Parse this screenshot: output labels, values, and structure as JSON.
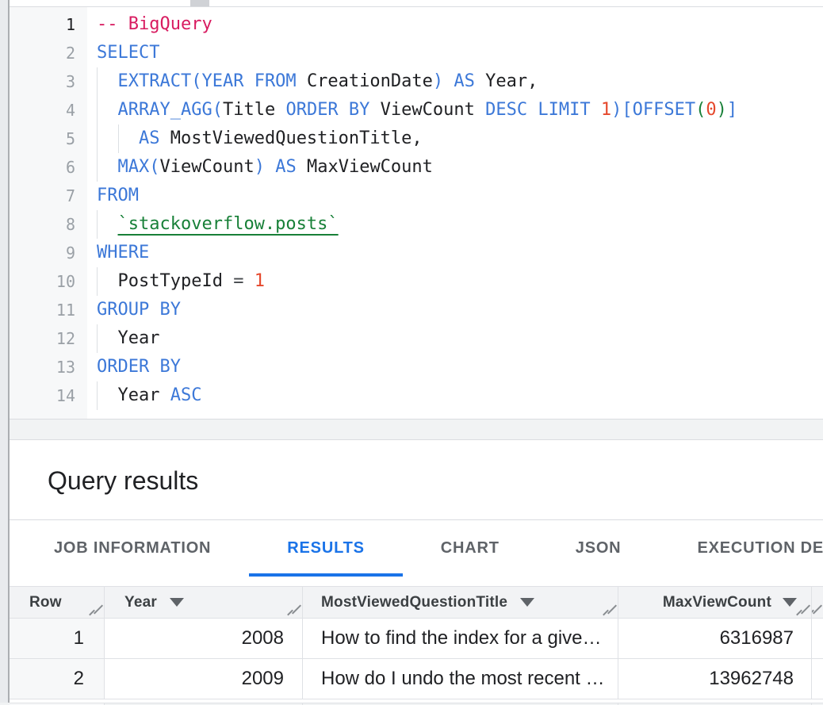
{
  "colors": {
    "keyword": "#3c78d8",
    "comment": "#d81b60",
    "number": "#e5482c",
    "tableref": "#188038",
    "tab_active": "#1a73e8",
    "header_text": "#3c4043",
    "body_text": "#202124"
  },
  "editor": {
    "lines": [
      {
        "no": "1",
        "indent": 0,
        "active": true,
        "tokens": [
          [
            "cm",
            "-- BigQuery"
          ]
        ]
      },
      {
        "no": "2",
        "indent": 0,
        "tokens": [
          [
            "kw",
            "SELECT"
          ]
        ]
      },
      {
        "no": "3",
        "indent": 1,
        "tokens": [
          [
            "kw",
            "EXTRACT"
          ],
          [
            "p1",
            "("
          ],
          [
            "kw",
            "YEAR FROM"
          ],
          [
            "pl",
            " "
          ],
          [
            "id",
            "CreationDate"
          ],
          [
            "p1",
            ")"
          ],
          [
            "pl",
            " "
          ],
          [
            "kw",
            "AS"
          ],
          [
            "pl",
            " "
          ],
          [
            "id",
            "Year"
          ],
          [
            "pl",
            ","
          ]
        ]
      },
      {
        "no": "4",
        "indent": 1,
        "tokens": [
          [
            "kw",
            "ARRAY_AGG"
          ],
          [
            "p1",
            "("
          ],
          [
            "id",
            "Title"
          ],
          [
            "pl",
            " "
          ],
          [
            "kw",
            "ORDER BY"
          ],
          [
            "pl",
            " "
          ],
          [
            "id",
            "ViewCount"
          ],
          [
            "pl",
            " "
          ],
          [
            "kw",
            "DESC LIMIT"
          ],
          [
            "pl",
            " "
          ],
          [
            "num",
            "1"
          ],
          [
            "p1",
            ")["
          ],
          [
            "kw",
            "OFFSET"
          ],
          [
            "p2",
            "("
          ],
          [
            "num",
            "0"
          ],
          [
            "p2",
            ")"
          ],
          [
            "p1",
            "]"
          ]
        ]
      },
      {
        "no": "5",
        "indent": 2,
        "tokens": [
          [
            "kw",
            "AS"
          ],
          [
            "pl",
            " "
          ],
          [
            "id",
            "MostViewedQuestionTitle"
          ],
          [
            "pl",
            ","
          ]
        ]
      },
      {
        "no": "6",
        "indent": 1,
        "tokens": [
          [
            "kw",
            "MAX"
          ],
          [
            "p1",
            "("
          ],
          [
            "id",
            "ViewCount"
          ],
          [
            "p1",
            ")"
          ],
          [
            "pl",
            " "
          ],
          [
            "kw",
            "AS"
          ],
          [
            "pl",
            " "
          ],
          [
            "id",
            "MaxViewCount"
          ]
        ]
      },
      {
        "no": "7",
        "indent": 0,
        "tokens": [
          [
            "kw",
            "FROM"
          ]
        ]
      },
      {
        "no": "8",
        "indent": 1,
        "tokens": [
          [
            "tbl",
            "`stackoverflow.posts`"
          ]
        ]
      },
      {
        "no": "9",
        "indent": 0,
        "tokens": [
          [
            "kw",
            "WHERE"
          ]
        ]
      },
      {
        "no": "10",
        "indent": 1,
        "tokens": [
          [
            "id",
            "PostTypeId"
          ],
          [
            "pl",
            " "
          ],
          [
            "op",
            "="
          ],
          [
            "pl",
            " "
          ],
          [
            "num",
            "1"
          ]
        ]
      },
      {
        "no": "11",
        "indent": 0,
        "tokens": [
          [
            "kw",
            "GROUP BY"
          ]
        ]
      },
      {
        "no": "12",
        "indent": 1,
        "tokens": [
          [
            "id",
            "Year"
          ]
        ]
      },
      {
        "no": "13",
        "indent": 0,
        "tokens": [
          [
            "kw",
            "ORDER BY"
          ]
        ]
      },
      {
        "no": "14",
        "indent": 1,
        "tokens": [
          [
            "id",
            "Year"
          ],
          [
            "pl",
            " "
          ],
          [
            "kw",
            "ASC"
          ]
        ]
      }
    ]
  },
  "results": {
    "title": "Query results"
  },
  "tabs": {
    "items": [
      {
        "label": "JOB INFORMATION",
        "active": false
      },
      {
        "label": "RESULTS",
        "active": true
      },
      {
        "label": "CHART",
        "active": false
      },
      {
        "label": "JSON",
        "active": false
      },
      {
        "label": "EXECUTION DETAILS",
        "active": false
      }
    ]
  },
  "table": {
    "columns": [
      {
        "label": "Row",
        "sortable": false
      },
      {
        "label": "Year",
        "sortable": true
      },
      {
        "label": "MostViewedQuestionTitle",
        "sortable": true
      },
      {
        "label": "MaxViewCount",
        "sortable": true
      }
    ],
    "rows": [
      {
        "row": "1",
        "year": "2008",
        "title": "How to find the index for a give…",
        "max_view_count": "6316987"
      },
      {
        "row": "2",
        "year": "2009",
        "title": "How do I undo the most recent …",
        "max_view_count": "13962748"
      }
    ]
  }
}
